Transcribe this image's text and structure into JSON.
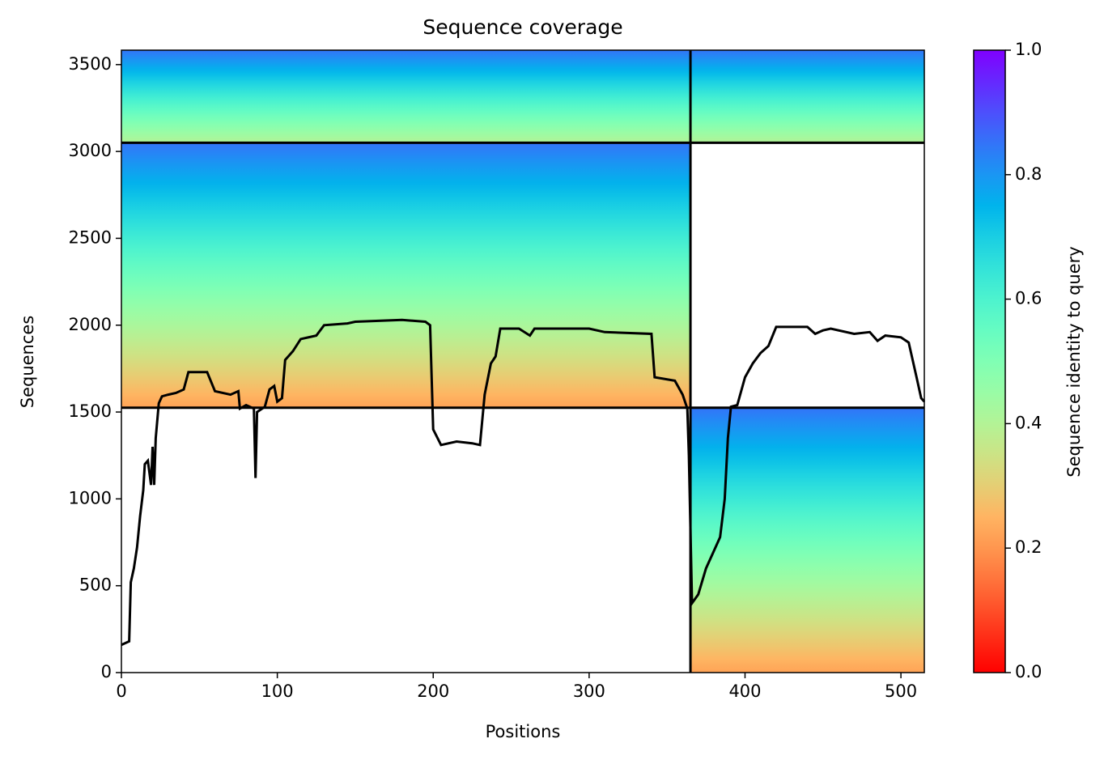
{
  "chart_data": {
    "type": "coverage",
    "title": "Sequence coverage",
    "xlabel": "Positions",
    "ylabel": "Sequences",
    "xlim": [
      0,
      515
    ],
    "ylim": [
      0,
      3583
    ],
    "xticks": [
      0,
      100,
      200,
      300,
      400,
      500
    ],
    "yticks": [
      0,
      500,
      1000,
      1500,
      2000,
      2500,
      3000,
      3500
    ],
    "x_breaks": [
      365
    ],
    "y_breaks": [
      1525,
      3050
    ],
    "blocks": [
      {
        "x": [
          0,
          365
        ],
        "y": [
          3050,
          3583
        ],
        "identity": [
          0.4,
          0.85
        ]
      },
      {
        "x": [
          0,
          365
        ],
        "y": [
          1525,
          3050
        ],
        "identity": [
          0.22,
          0.85
        ]
      },
      {
        "x": [
          365,
          515
        ],
        "y": [
          3050,
          3583
        ],
        "identity": [
          0.4,
          0.85
        ]
      },
      {
        "x": [
          365,
          515
        ],
        "y": [
          0,
          1525
        ],
        "identity": [
          0.22,
          0.85
        ]
      }
    ],
    "line_color": "#000000",
    "x": [
      0,
      5,
      6,
      8,
      10,
      12,
      14,
      15,
      17,
      19,
      20,
      21,
      22,
      24,
      26,
      30,
      35,
      40,
      43,
      55,
      60,
      70,
      75,
      76,
      80,
      85,
      86,
      87,
      92,
      95,
      98,
      100,
      103,
      105,
      110,
      115,
      125,
      130,
      145,
      150,
      180,
      195,
      198,
      200,
      205,
      215,
      225,
      230,
      233,
      237,
      240,
      243,
      255,
      262,
      265,
      300,
      310,
      340,
      342,
      355,
      360,
      363,
      364,
      366,
      370,
      375,
      380,
      384,
      387,
      389,
      391,
      395,
      400,
      405,
      410,
      415,
      420,
      430,
      440,
      445,
      450,
      455,
      470,
      480,
      485,
      490,
      500,
      505,
      510,
      513,
      515
    ],
    "values": [
      160,
      180,
      520,
      600,
      720,
      900,
      1050,
      1200,
      1220,
      1080,
      1300,
      1080,
      1350,
      1550,
      1590,
      1600,
      1610,
      1630,
      1730,
      1730,
      1620,
      1600,
      1620,
      1520,
      1540,
      1520,
      1120,
      1500,
      1530,
      1630,
      1650,
      1560,
      1580,
      1800,
      1850,
      1920,
      1940,
      2000,
      2010,
      2020,
      2030,
      2020,
      2000,
      1400,
      1310,
      1330,
      1320,
      1310,
      1600,
      1780,
      1820,
      1980,
      1980,
      1940,
      1980,
      1980,
      1960,
      1950,
      1700,
      1680,
      1600,
      1520,
      1250,
      400,
      450,
      600,
      700,
      780,
      1000,
      1350,
      1530,
      1540,
      1700,
      1780,
      1840,
      1880,
      1990,
      1990,
      1990,
      1950,
      1970,
      1980,
      1950,
      1960,
      1910,
      1940,
      1930,
      1900,
      1700,
      1580,
      1560
    ],
    "colorbar": {
      "label": "Sequence identity to query",
      "colormap": "rainbow_r",
      "lim": [
        0,
        1
      ],
      "ticks": [
        {
          "value": 0,
          "label": "0.0"
        },
        0.2,
        0.4,
        0.6,
        0.8,
        {
          "value": 1,
          "label": "1.0"
        }
      ]
    }
  }
}
